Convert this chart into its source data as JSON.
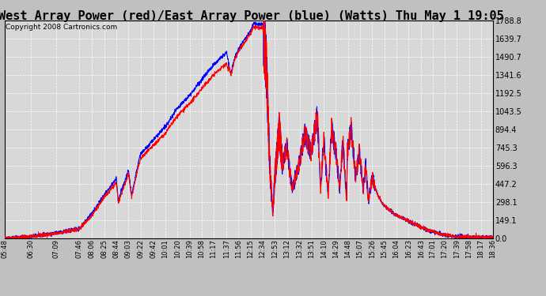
{
  "title": "West Array Power (red)/East Array Power (blue) (Watts) Thu May 1 19:05",
  "copyright": "Copyright 2008 Cartronics.com",
  "bg_color": "#c0c0c0",
  "plot_bg_color": "#d8d8d8",
  "grid_color": "#ffffff",
  "line_red": "red",
  "line_blue": "blue",
  "ymin": 0.0,
  "ymax": 1788.8,
  "yticks": [
    0.0,
    149.1,
    298.1,
    447.2,
    596.3,
    745.3,
    894.4,
    1043.5,
    1192.5,
    1341.6,
    1490.7,
    1639.7,
    1788.8
  ],
  "xtick_labels": [
    "05:48",
    "06:30",
    "07:09",
    "07:46",
    "08:06",
    "08:25",
    "08:44",
    "09:03",
    "09:22",
    "09:42",
    "10:01",
    "10:20",
    "10:39",
    "10:58",
    "11:17",
    "11:37",
    "11:56",
    "12:15",
    "12:34",
    "12:53",
    "13:12",
    "13:32",
    "13:51",
    "14:10",
    "14:29",
    "14:48",
    "15:07",
    "15:26",
    "15:45",
    "16:04",
    "16:23",
    "16:43",
    "17:01",
    "17:20",
    "17:39",
    "17:58",
    "18:17",
    "18:36"
  ],
  "title_fontsize": 11,
  "copyright_fontsize": 6.5
}
